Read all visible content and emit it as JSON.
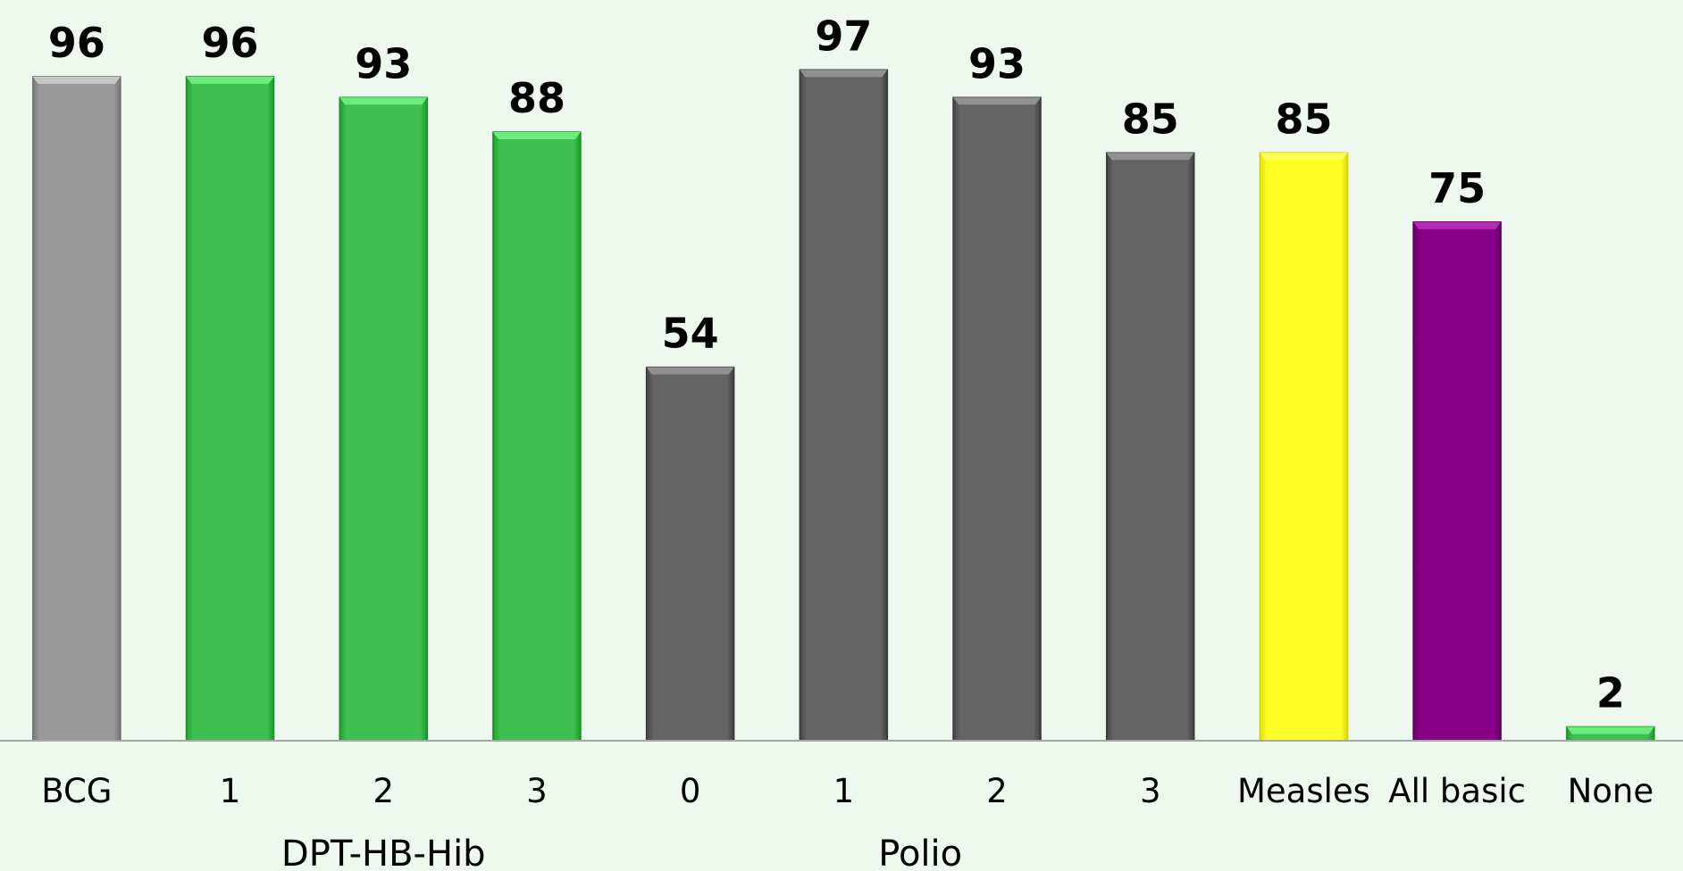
{
  "chart_data": {
    "type": "bar",
    "title": "",
    "xlabel": "",
    "ylabel": "",
    "ylim": [
      0,
      100
    ],
    "grid": false,
    "legend": "none",
    "categories": [
      "BCG",
      "1",
      "2",
      "3",
      "0",
      "1",
      "2",
      "3",
      "Measles",
      "All basic",
      "None"
    ],
    "values": [
      96,
      96,
      93,
      88,
      54,
      97,
      93,
      85,
      85,
      75,
      2
    ],
    "colors": [
      "#999999",
      "#3fbf4f",
      "#3fbf4f",
      "#3fbf4f",
      "#646464",
      "#646464",
      "#646464",
      "#646464",
      "#ffff26",
      "#880088",
      "#3fbf4f"
    ],
    "groups": [
      {
        "label": "DPT-HB-Hib",
        "from": 1,
        "to": 3
      },
      {
        "label": "Polio",
        "from": 4,
        "to": 7
      }
    ],
    "axis_color": "#a6a6a6",
    "background": "#eef8ee"
  }
}
